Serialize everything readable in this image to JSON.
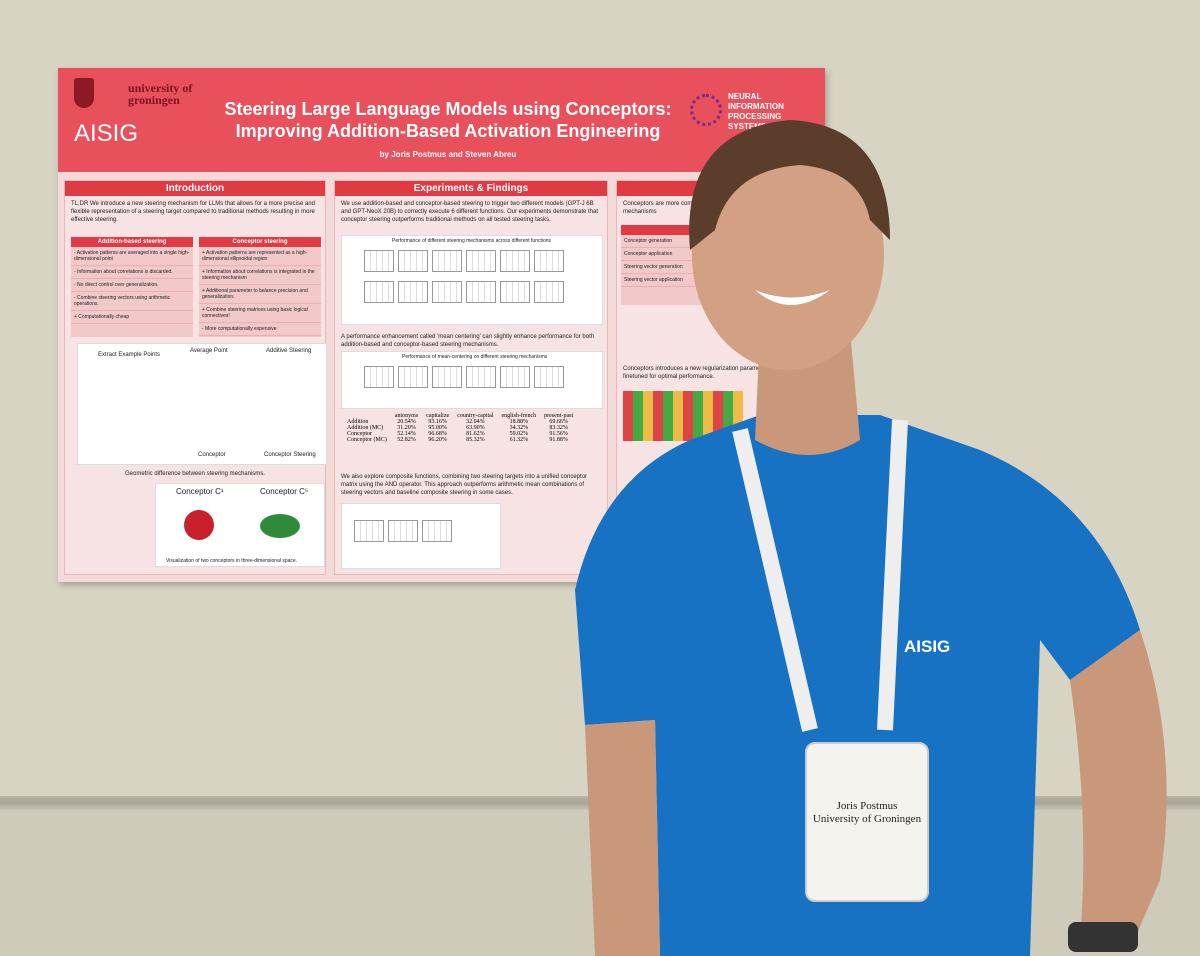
{
  "poster": {
    "university": "university of groningen",
    "aisig": "AISIG",
    "title_line1": "Steering Large Language Models using Conceptors:",
    "title_line2": "Improving Addition-Based Activation Engineering",
    "authors": "by Joris Postmus and Steven Abreu",
    "neurips": "NEURAL INFORMATION PROCESSING SYSTEMS",
    "intro": {
      "heading": "Introduction",
      "tldr": "TL;DR We introduce a new steering mechanism for LLMs that allows for a more precise and flexible representation of a steering target compared to traditional methods resulting in more effective steering.",
      "addition_heading": "Addition-based steering",
      "addition_items": [
        "- Activation patterns are averaged into a single high-dimensional point",
        "- Information about correlations is discarded.",
        "- No direct control over generalization.",
        "- Combine steering vectors using arithmetic operations.",
        "+ Computationally cheap"
      ],
      "conceptor_heading": "Conceptor steering",
      "conceptor_items": [
        "+ Activation patterns are represented as a high-dimensional ellipsoidal region",
        "+ Information about correlations is integrated in the steering mechanism",
        "+ Additional parameter to balance precision and generalization.",
        "+ Combine steering matrices using basic logical connectives!",
        "- More computationally expensive"
      ],
      "fig_labels": [
        "Extract Example Points",
        "Average Point",
        "Additive Steering",
        "Conceptor",
        "Conceptor Steering"
      ],
      "fig_caption": "Geometric difference between steering mechanisms.",
      "conceptor_fig_labels": [
        "Conceptor C¹",
        "Conceptor C⁵"
      ],
      "conceptor_fig_caption": "Visualization of two conceptors in three-dimensional space."
    },
    "experiments": {
      "heading": "Experiments & Findings",
      "text1": "We use addition-based and conceptor-based steering to trigger two different models (GPT-J 6B and GPT-NeoX 20B) to correctly execute 6 different functions. Our experiments demonstrate that conceptor steering outperforms traditional methods on all tested steering tasks.",
      "plot1_title": "Performance of different steering mechanisms across different functions",
      "text2": "A performance enhancement called 'mean centering' can slightly enhance performance for both addition-based and conceptor-based steering mechanisms.",
      "plot2_title": "Performance of mean-centering on different steering mechanisms",
      "table": {
        "headers": [
          "",
          "antonyms",
          "capitalize",
          "country-capital",
          "english-french",
          "present-past"
        ],
        "rows": [
          [
            "Addition",
            "20.54%",
            "93.16%",
            "32.04%",
            "18.88%",
            "69.66%"
          ],
          [
            "Addition (MC)",
            "31.20%",
            "95.00%",
            "63.90%",
            "34.32%",
            "83.32%"
          ],
          [
            "Conceptor",
            "52.14%",
            "96.68%",
            "81.62%",
            "59.02%",
            "91.56%"
          ],
          [
            "Conceptor (MC)",
            "52.82%",
            "96.20%",
            "85.32%",
            "61.32%",
            "91.88%"
          ]
        ]
      },
      "text3": "We also explore composite functions, combining two steering targets into a unified conceptor matrix using the AND operator. This approach outperforms arithmetic mean combinations of steering vectors and baseline composite steering in some cases."
    },
    "right": {
      "text1": "Conceptors are more computationally expensive than addition-based steering mechanisms",
      "rows": [
        "Conceptor generation",
        "Conceptor application",
        "Steering vector generation",
        "Steering vector application"
      ],
      "text2": "Conceptors introduces a new regularization parameter which has to be finetuned for optimal performance."
    }
  },
  "badge": {
    "name": "Joris Postmus",
    "affiliation": "University of Groningen"
  },
  "shirt_logo": "AISIG"
}
